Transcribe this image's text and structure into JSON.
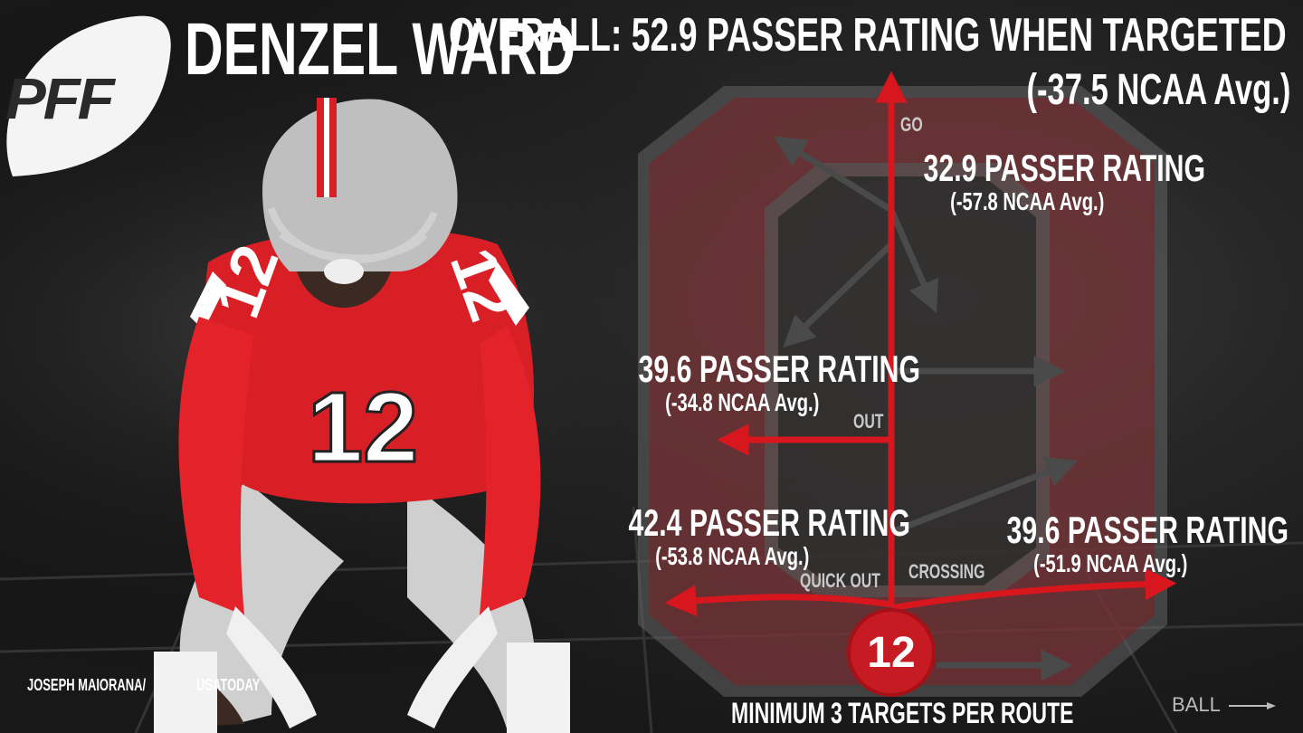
{
  "brand": {
    "logo_text": "PFF"
  },
  "player": {
    "name": "DENZEL WARD",
    "jersey_number": "12"
  },
  "overall": {
    "title": "OVERALL: 52.9 PASSER RATING WHEN TARGETED",
    "ncaa_avg": "(-37.5 NCAA Avg.)"
  },
  "routes": {
    "go": {
      "label": "GO",
      "rating": "32.9 PASSER RATING",
      "ncaa_avg": "(-57.8 NCAA Avg.)"
    },
    "out": {
      "label": "OUT",
      "rating": "39.6 PASSER RATING",
      "ncaa_avg": "(-34.8 NCAA Avg.)"
    },
    "quick_out": {
      "label": "QUICK OUT",
      "rating": "42.4 PASSER RATING",
      "ncaa_avg": "(-53.8 NCAA Avg.)"
    },
    "crossing": {
      "label": "CROSSING",
      "rating": "39.6 PASSER RATING",
      "ncaa_avg": "(-51.9 NCAA Avg.)"
    }
  },
  "footer": {
    "minimum_note": "MINIMUM 3 TARGETS PER ROUTE",
    "ball_label": "BALL",
    "photo_credit_line1": "JOSEPH MAIORANA/",
    "photo_credit_line2": "USATODAY"
  },
  "colors": {
    "accent_red": "#c61b22",
    "route_arrow_red": "#d8161e",
    "grey_arrow": "#4a4a4a",
    "block_o_fill": "#5a2528"
  }
}
